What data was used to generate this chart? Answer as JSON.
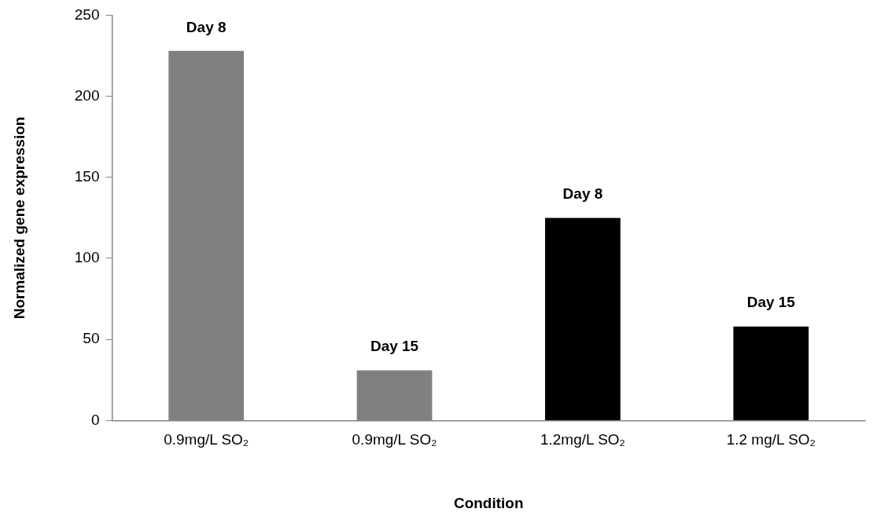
{
  "chart_data": {
    "type": "bar",
    "xlabel": "Condition",
    "ylabel": "Normalized gene expression",
    "categories": [
      "0.9mg/L SO₂",
      "0.9mg/L SO₂",
      "1.2mg/L SO₂",
      "1.2 mg/L SO₂"
    ],
    "values": [
      228,
      31,
      125,
      58
    ],
    "colors": [
      "#808080",
      "#808080",
      "#000000",
      "#000000"
    ],
    "value_labels": [
      "Day 8",
      "Day 15",
      "Day 8",
      "Day 15"
    ],
    "ylim": [
      0,
      250
    ],
    "yticks": [
      0,
      50,
      100,
      150,
      200,
      250
    ],
    "grid": false,
    "legend": false
  }
}
